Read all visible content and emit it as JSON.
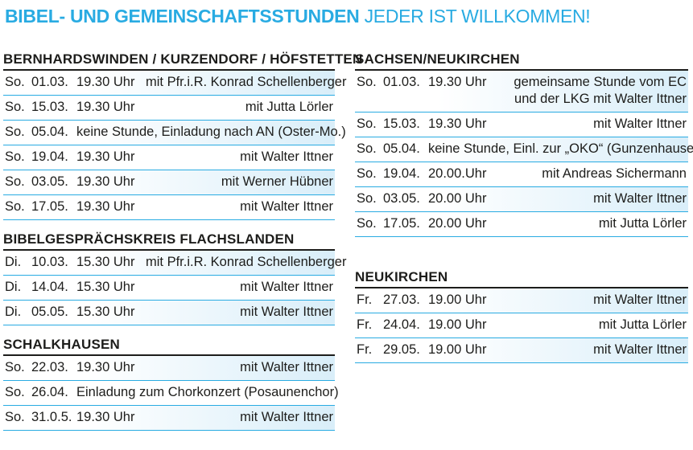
{
  "title": {
    "bold": "BIBEL- UND GEMEINSCHAFTSSTUNDEN",
    "light": "JEDER IST WILLKOMMEN!"
  },
  "colors": {
    "accent": "#29abe2",
    "text": "#1d1d1b",
    "shade": "#d9eef9"
  },
  "left": [
    {
      "heading": "BERNHARDSWINDEN / KURZENDORF / HÖFSTETTEN",
      "rows": [
        {
          "day": "So.",
          "date": "01.03.",
          "time": "19.30 Uhr",
          "who": "mit Pfr.i.R. Konrad Schellenberger",
          "shade": true
        },
        {
          "day": "So.",
          "date": "15.03.",
          "time": "19.30 Uhr",
          "who": "mit Jutta Lörler",
          "shade": false
        },
        {
          "day": "So.",
          "date": "05.04.",
          "full": "keine Stunde, Einladung nach AN (Oster-Mo.)",
          "shade": true
        },
        {
          "day": "So.",
          "date": "19.04.",
          "time": "19.30 Uhr",
          "who": "mit Walter Ittner",
          "shade": false
        },
        {
          "day": "So.",
          "date": "03.05.",
          "time": "19.30 Uhr",
          "who": "mit Werner Hübner",
          "shade": true
        },
        {
          "day": "So.",
          "date": "17.05.",
          "time": "19.30 Uhr",
          "who": "mit Walter Ittner",
          "shade": false
        }
      ]
    },
    {
      "heading": "BIBELGESPRÄCHSKREIS FLACHSLANDEN",
      "rows": [
        {
          "day": "Di.",
          "date": "10.03.",
          "time": "15.30 Uhr",
          "who": "mit Pfr.i.R. Konrad Schellenberger",
          "shade": true
        },
        {
          "day": "Di.",
          "date": "14.04.",
          "time": "15.30 Uhr",
          "who": "mit Walter Ittner",
          "shade": false
        },
        {
          "day": "Di.",
          "date": "05.05.",
          "time": "15.30 Uhr",
          "who": "mit Walter Ittner",
          "shade": true
        }
      ]
    },
    {
      "heading": "SCHALKHAUSEN",
      "rows": [
        {
          "day": "So.",
          "date": "22.03.",
          "time": "19.30 Uhr",
          "who": "mit Walter Ittner",
          "shade": true
        },
        {
          "day": "So.",
          "date": "26.04.",
          "full": "Einladung zum Chorkonzert (Posaunenchor)",
          "shade": false
        },
        {
          "day": "So.",
          "date": "31.0.5.",
          "time": "19.30 Uhr",
          "who": "mit Walter Ittner",
          "shade": true
        }
      ]
    }
  ],
  "right": [
    {
      "heading": "SACHSEN/NEUKIRCHEN",
      "rows": [
        {
          "day": "So.",
          "date": "01.03.",
          "time": "19.30 Uhr",
          "who": "gemeinsame Stunde vom EC und der LKG mit Walter Ittner",
          "shade": true,
          "multi": true
        },
        {
          "day": "So.",
          "date": "15.03.",
          "time": "19.30 Uhr",
          "who": "mit Walter Ittner",
          "shade": false
        },
        {
          "day": "So.",
          "date": "05.04.",
          "full": "keine Stunde, Einl. zur „OKO“  (Gunzenhausen)",
          "shade": true
        },
        {
          "day": "So.",
          "date": "19.04.",
          "time": "20.00.Uhr",
          "who": "mit Andreas Sichermann",
          "shade": false
        },
        {
          "day": "So.",
          "date": "03.05.",
          "time": "20.00 Uhr",
          "who": "mit Walter Ittner",
          "shade": true
        },
        {
          "day": "So.",
          "date": "17.05.",
          "time": "20.00 Uhr",
          "who": "mit Jutta Lörler",
          "shade": false
        }
      ]
    },
    {
      "heading": "NEUKIRCHEN",
      "rows": [
        {
          "day": "Fr.",
          "date": "27.03.",
          "time": "19.00 Uhr",
          "who": "mit Walter Ittner",
          "shade": true
        },
        {
          "day": "Fr.",
          "date": "24.04.",
          "time": "19.00 Uhr",
          "who": "mit Jutta Lörler",
          "shade": false
        },
        {
          "day": "Fr.",
          "date": "29.05.",
          "time": "19.00 Uhr",
          "who": "mit Walter Ittner",
          "shade": true
        }
      ]
    }
  ]
}
